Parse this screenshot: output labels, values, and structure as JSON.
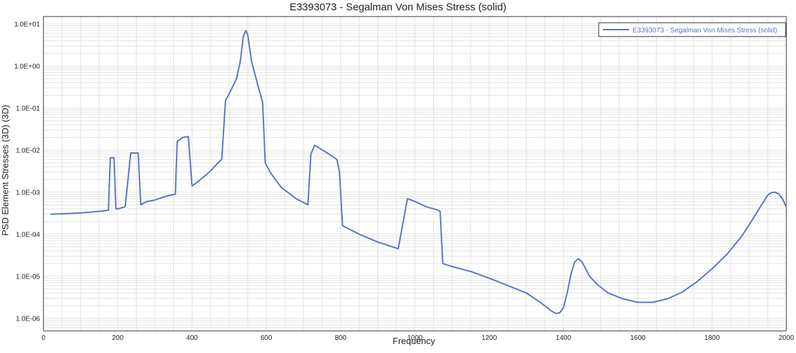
{
  "chart_data": {
    "type": "line",
    "title": "E3393073 - Segalman Von Mises Stress (solid)",
    "xlabel": "Frequency",
    "ylabel": "PSD Element Stresses (3D) (3D)",
    "xlim": [
      0,
      2000
    ],
    "ylim": [
      5e-07,
      15
    ],
    "yscale": "log",
    "grid": true,
    "legend_position": "top-right",
    "x_ticks": [
      0,
      200,
      400,
      600,
      800,
      1000,
      1200,
      1400,
      1600,
      1800,
      2000
    ],
    "x_tick_labels": [
      "0",
      "200",
      "400",
      "600",
      "800",
      "1000",
      "1200",
      "1400",
      "1600",
      "1800",
      "2000"
    ],
    "y_ticks": [
      1e-06,
      1e-05,
      0.0001,
      0.001,
      0.01,
      0.1,
      1,
      10
    ],
    "y_tick_labels": [
      "1.0E-06",
      "1.0E-05",
      "1.0E-04",
      "1.0E-03",
      "1.0E-02",
      "1.0E-01",
      "1.0E+00",
      "1.0E+01"
    ],
    "colors": {
      "series": "#5b75c2",
      "grid": "#e2e2e2",
      "axis": "#333333"
    },
    "series": [
      {
        "name": "E3393073 - Segalman Von Mises Stress (solid)",
        "x": [
          20,
          50,
          100,
          150,
          175,
          180,
          190,
          195,
          200,
          220,
          235,
          240,
          255,
          262,
          270,
          280,
          300,
          330,
          355,
          360,
          375,
          390,
          400,
          420,
          450,
          470,
          480,
          490,
          500,
          520,
          530,
          538,
          545,
          550,
          560,
          580,
          590,
          597,
          610,
          640,
          680,
          712,
          720,
          730,
          760,
          790,
          797,
          805,
          850,
          900,
          955,
          980,
          1000,
          1030,
          1060,
          1068,
          1075,
          1100,
          1150,
          1200,
          1250,
          1300,
          1340,
          1370,
          1380,
          1390,
          1400,
          1410,
          1420,
          1430,
          1440,
          1450,
          1460,
          1470,
          1490,
          1520,
          1560,
          1600,
          1640,
          1680,
          1720,
          1760,
          1800,
          1840,
          1880,
          1910,
          1930,
          1950,
          1960,
          1970,
          1980,
          1990,
          1998
        ],
        "y": [
          0.0003,
          0.000305,
          0.00032,
          0.00035,
          0.00037,
          0.0065,
          0.0065,
          0.0004,
          0.0004,
          0.00045,
          0.0085,
          0.0085,
          0.0085,
          0.0005,
          0.00055,
          0.0006,
          0.00065,
          0.0008,
          0.0009,
          0.016,
          0.02,
          0.021,
          0.0014,
          0.0019,
          0.0032,
          0.005,
          0.006,
          0.15,
          0.22,
          0.5,
          1.3,
          5,
          7,
          5.5,
          1.3,
          0.28,
          0.14,
          0.005,
          0.003,
          0.0013,
          0.0007,
          0.0005,
          0.008,
          0.013,
          0.009,
          0.006,
          0.003,
          0.00016,
          0.0001,
          6.5e-05,
          4.5e-05,
          0.0007,
          0.0006,
          0.00045,
          0.00038,
          0.00035,
          2e-05,
          1.7e-05,
          1.3e-05,
          9e-06,
          6e-06,
          4e-06,
          2.3e-06,
          1.45e-06,
          1.3e-06,
          1.35e-06,
          1.8e-06,
          4e-06,
          1.1e-05,
          2.2e-05,
          2.6e-05,
          2.2e-05,
          1.5e-05,
          1e-05,
          6.5e-06,
          4e-06,
          2.9e-06,
          2.4e-06,
          2.4e-06,
          2.9e-06,
          4.2e-06,
          7.5e-06,
          1.5e-05,
          3.3e-05,
          9e-05,
          0.00023,
          0.00045,
          0.00085,
          0.00098,
          0.001,
          0.0009,
          0.00068,
          0.00048
        ]
      }
    ]
  }
}
